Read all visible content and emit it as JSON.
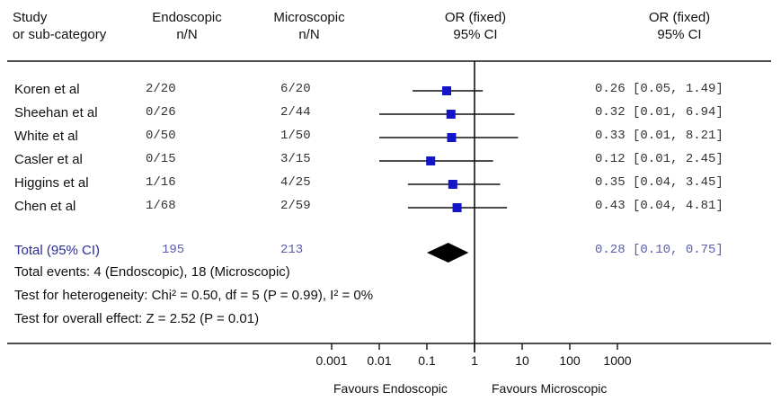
{
  "header": {
    "study_line1": "Study",
    "study_line2": "or sub-category",
    "endo_line1": "Endoscopic",
    "endo_line2": "n/N",
    "micro_line1": "Microscopic",
    "micro_line2": "n/N",
    "plot_line1": "OR (fixed)",
    "plot_line2": "95% CI",
    "or_line1": "OR (fixed)",
    "or_line2": "95% CI"
  },
  "total": {
    "label": "Total (95% CI)",
    "endo_n": "195",
    "micro_n": "213",
    "or_text": "0.28 [0.10, 0.75]"
  },
  "footnotes": {
    "events": "Total events: 4 (Endoscopic), 18 (Microscopic)",
    "heterogeneity": "Test for heterogeneity: Chi² = 0.50, df = 5 (P = 0.99), I² = 0%",
    "overall": "Test for overall effect: Z = 2.52 (P = 0.01)"
  },
  "axis": {
    "favours_left": "Favours Endoscopic",
    "favours_right": "Favours Microscopic"
  },
  "chart_data": {
    "type": "scatter",
    "subtype": "forest-plot",
    "x_scale": "log",
    "xlim": [
      0.001,
      1000
    ],
    "x_ticks": [
      "0.001",
      "0.01",
      "0.1",
      "1",
      "10",
      "100",
      "1000"
    ],
    "x_tick_values": [
      0.001,
      0.01,
      0.1,
      1,
      10,
      100,
      1000
    ],
    "reference_line": 1,
    "marker_color": "#1515c8",
    "studies": [
      {
        "name": "Koren et al",
        "endo": "2/20",
        "micro": "6/20",
        "or": 0.26,
        "lo": 0.05,
        "hi": 1.49,
        "or_text": "0.26 [0.05, 1.49]"
      },
      {
        "name": "Sheehan et al",
        "endo": "0/26",
        "micro": "2/44",
        "or": 0.32,
        "lo": 0.01,
        "hi": 6.94,
        "or_text": "0.32 [0.01, 6.94]"
      },
      {
        "name": "White et al",
        "endo": "0/50",
        "micro": "1/50",
        "or": 0.33,
        "lo": 0.01,
        "hi": 8.21,
        "or_text": "0.33 [0.01, 8.21]"
      },
      {
        "name": "Casler et al",
        "endo": "0/15",
        "micro": "3/15",
        "or": 0.12,
        "lo": 0.01,
        "hi": 2.45,
        "or_text": "0.12 [0.01, 2.45]"
      },
      {
        "name": "Higgins et al",
        "endo": "1/16",
        "micro": "4/25",
        "or": 0.35,
        "lo": 0.04,
        "hi": 3.45,
        "or_text": "0.35 [0.04, 3.45]"
      },
      {
        "name": "Chen et al",
        "endo": "1/68",
        "micro": "2/59",
        "or": 0.43,
        "lo": 0.04,
        "hi": 4.81,
        "or_text": "0.43 [0.04, 4.81]"
      }
    ],
    "pooled": {
      "or": 0.28,
      "lo": 0.1,
      "hi": 0.75
    }
  }
}
